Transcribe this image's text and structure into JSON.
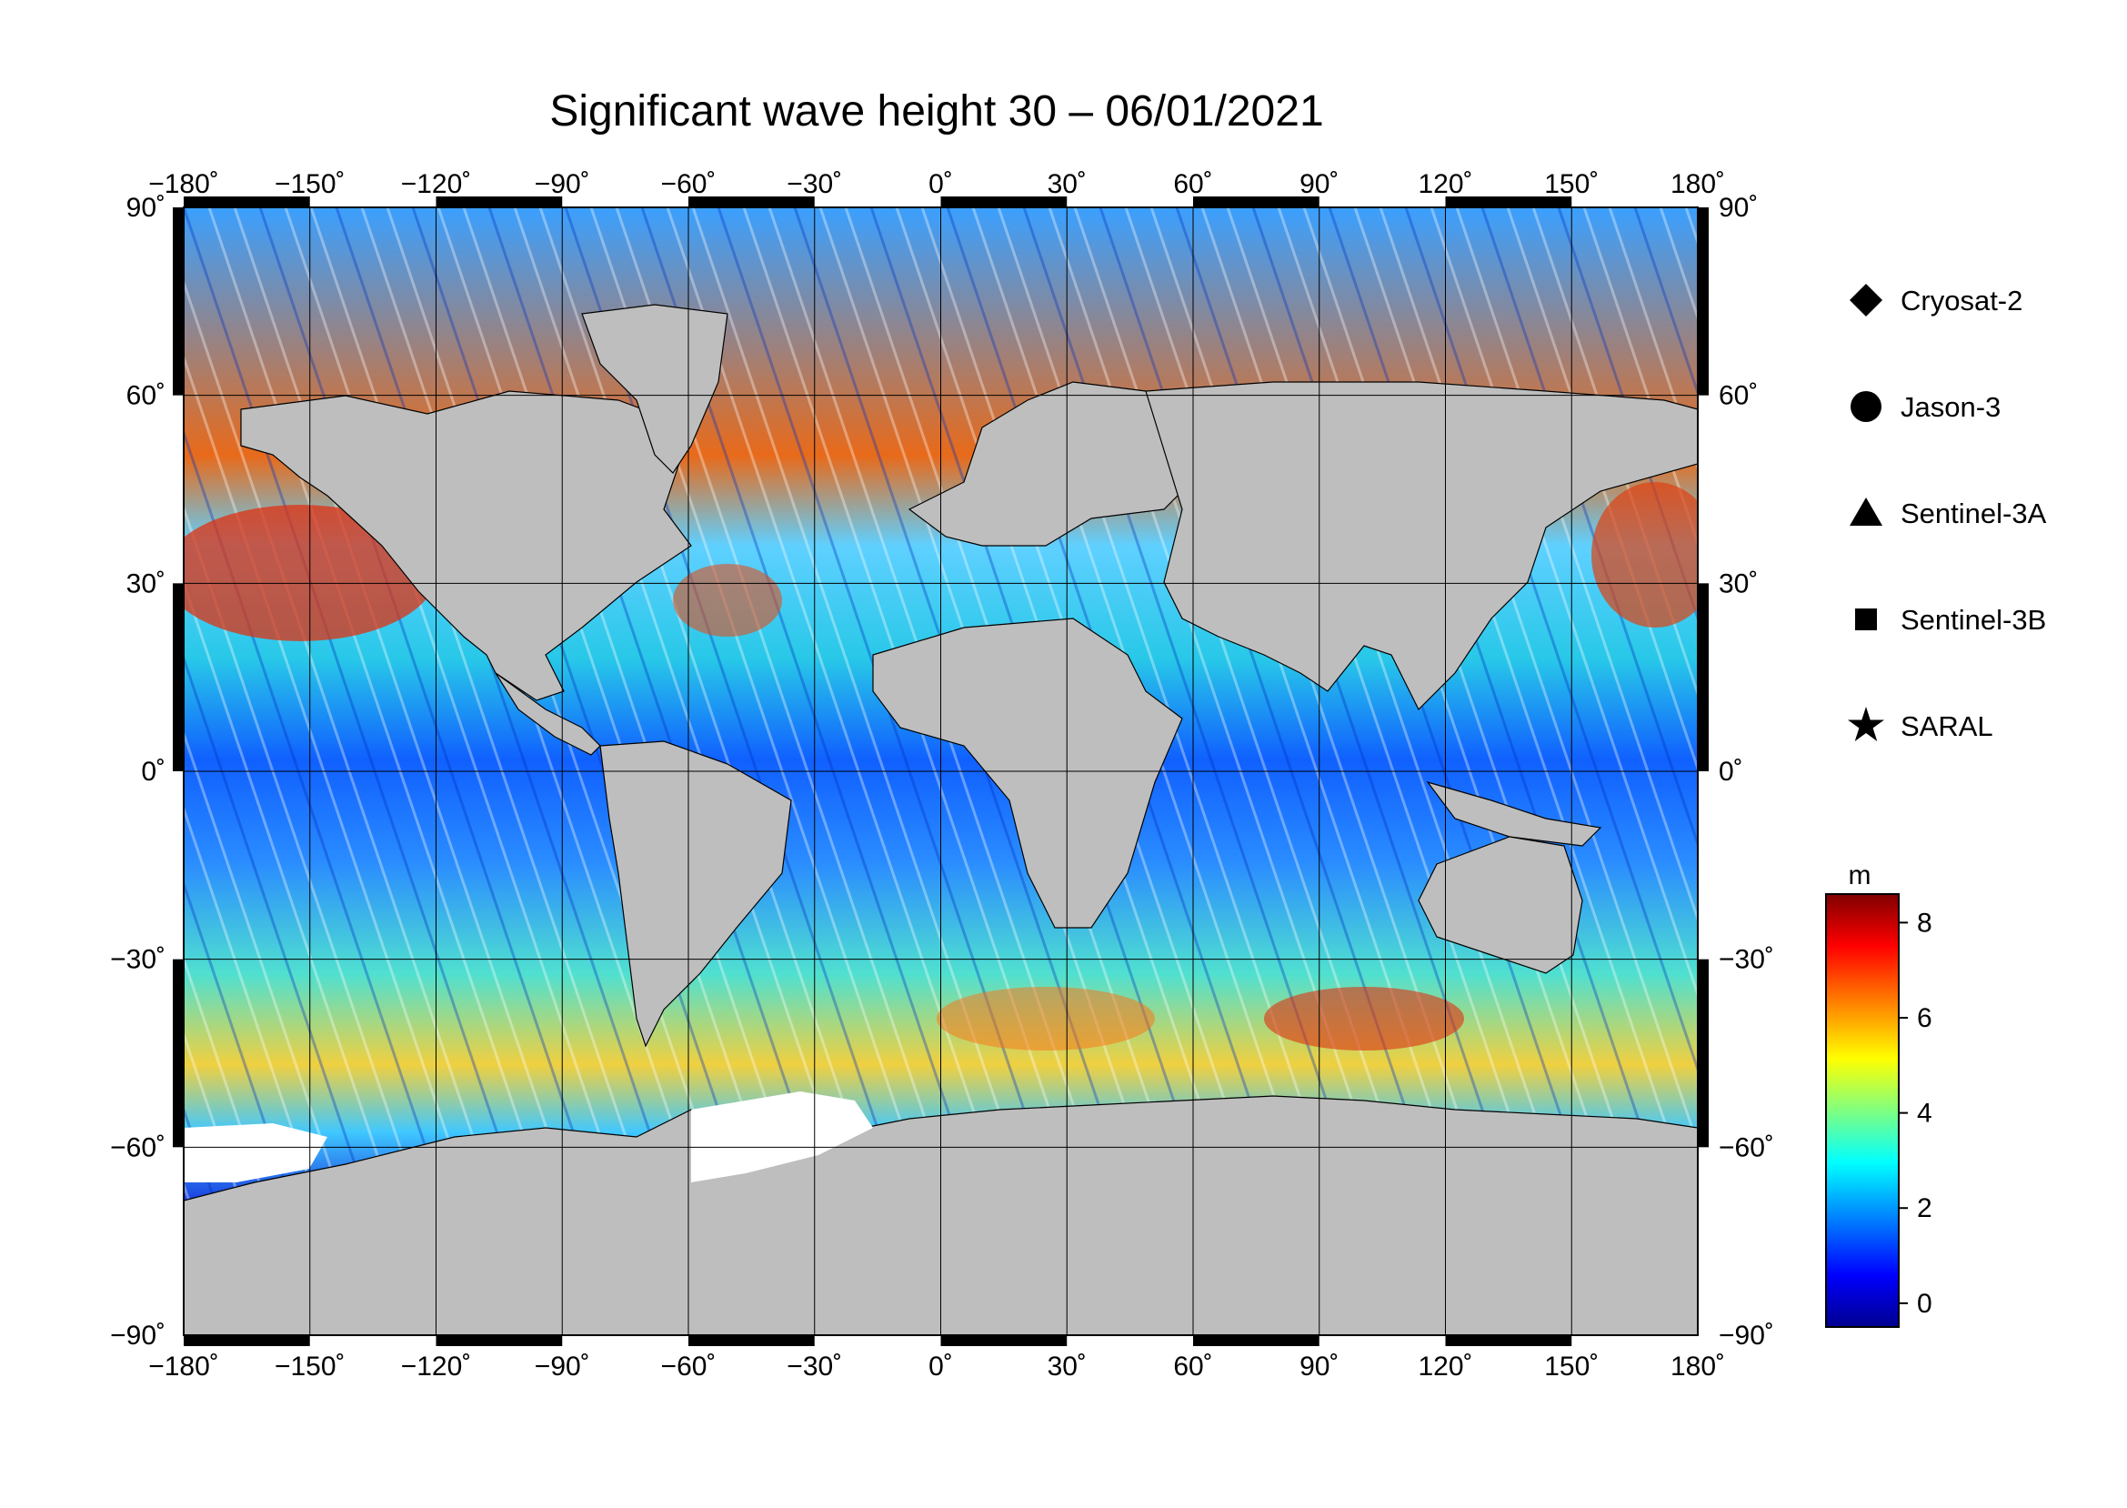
{
  "title": "Significant wave height 30 – 06/01/2021",
  "lon_ticks": [
    "−180˚",
    "−150˚",
    "−120˚",
    "−90˚",
    "−60˚",
    "−30˚",
    "0˚",
    "30˚",
    "60˚",
    "90˚",
    "120˚",
    "150˚",
    "180˚"
  ],
  "lat_ticks": [
    "90˚",
    "60˚",
    "30˚",
    "0˚",
    "−30˚",
    "−60˚",
    "−90˚"
  ],
  "legend": [
    {
      "label": "Cryosat-2",
      "symbol": "diamond"
    },
    {
      "label": "Jason-3",
      "symbol": "circle"
    },
    {
      "label": "Sentinel-3A",
      "symbol": "triangle"
    },
    {
      "label": "Sentinel-3B",
      "symbol": "square"
    },
    {
      "label": "SARAL",
      "symbol": "star"
    }
  ],
  "colorbar": {
    "unit": "m",
    "min": -0.5,
    "max": 8.6,
    "ticks": [
      "0",
      "2",
      "4",
      "6",
      "8"
    ],
    "colors": [
      "#00008f",
      "#0000ff",
      "#0080ff",
      "#00ffff",
      "#80ff80",
      "#ffff00",
      "#ff8000",
      "#ff0000",
      "#800000"
    ]
  },
  "colors": {
    "land": "#bebebe",
    "ice": "#ffffff",
    "frame": "#000000"
  }
}
